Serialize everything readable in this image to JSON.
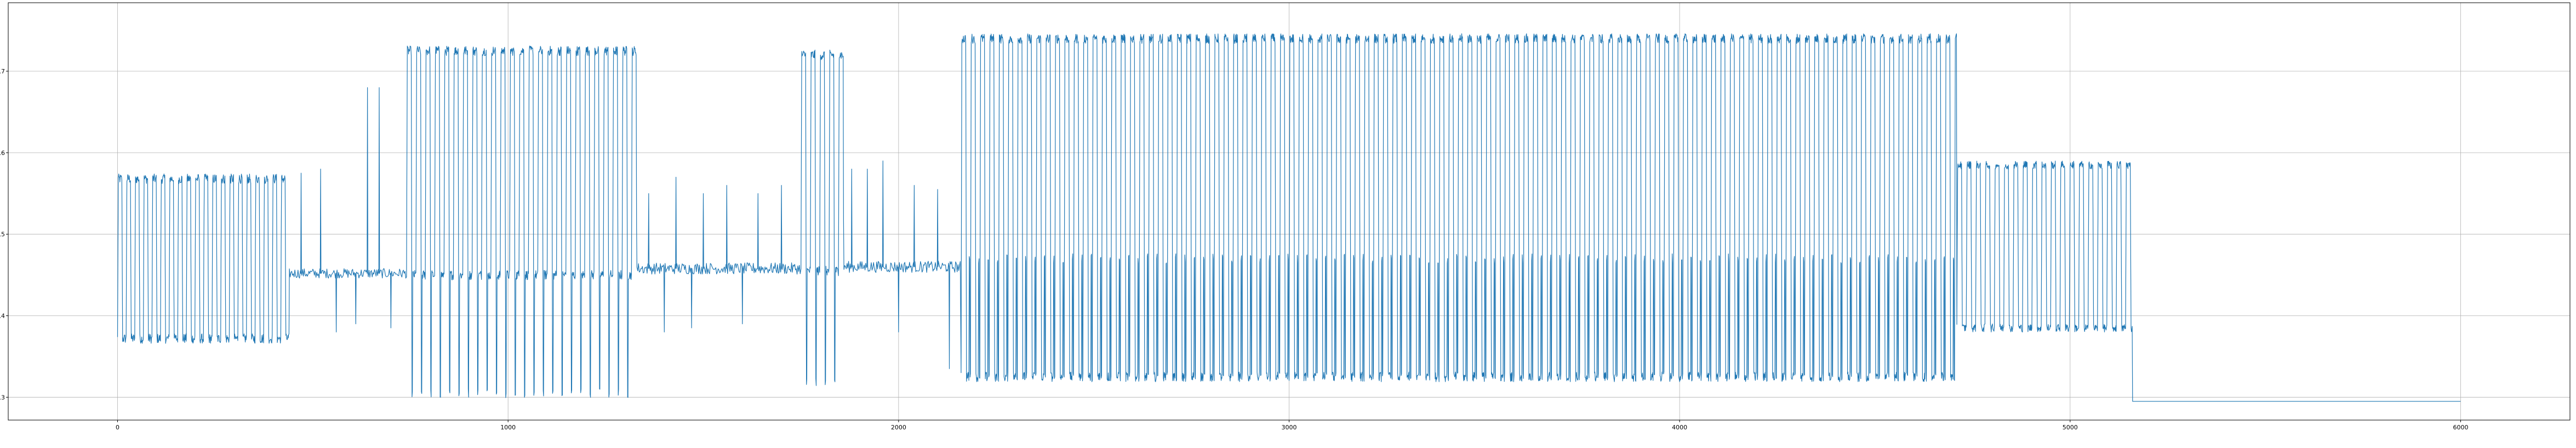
{
  "chart_data": {
    "type": "line",
    "title": "",
    "xlabel": "",
    "ylabel": "",
    "grid": true,
    "xlim": [
      -280,
      6280
    ],
    "ylim": [
      0.272,
      0.784
    ],
    "x_ticks": [
      0,
      1000,
      2000,
      3000,
      4000,
      5000,
      6000
    ],
    "x_tick_labels": [
      "0",
      "1000",
      "2000",
      "3000",
      "4000",
      "5000",
      "6000"
    ],
    "y_ticks": [
      0.3,
      0.4,
      0.5,
      0.6,
      0.7
    ],
    "y_tick_labels": [
      "0.3",
      "0.4",
      "0.5",
      "0.6",
      "0.7"
    ],
    "colors": {
      "line": "#1f77b4",
      "grid": "#b0b0b0",
      "axes": "#000000"
    },
    "series": [
      {
        "segments": [
          {
            "x_start": 0,
            "x_end": 440,
            "period": 22,
            "low": 0.372,
            "high": 0.568,
            "noise": 0.006
          },
          {
            "x_start": 440,
            "x_end": 740,
            "baseline": 0.452,
            "noise": 0.006,
            "spikes": [
              {
                "x": 470,
                "y": 0.575
              },
              {
                "x": 520,
                "y": 0.58
              },
              {
                "x": 560,
                "y": 0.38
              },
              {
                "x": 610,
                "y": 0.39
              },
              {
                "x": 640,
                "y": 0.68
              },
              {
                "x": 655,
                "y": 0.32
              },
              {
                "x": 670,
                "y": 0.68
              },
              {
                "x": 700,
                "y": 0.385
              }
            ]
          },
          {
            "x_start": 740,
            "x_end": 1330,
            "period": 24,
            "low": 0.45,
            "high": 0.725,
            "dip_low": 0.305,
            "noise": 0.006
          },
          {
            "x_start": 1330,
            "x_end": 1750,
            "baseline": 0.458,
            "noise": 0.007,
            "spikes": [
              {
                "x": 1360,
                "y": 0.55
              },
              {
                "x": 1400,
                "y": 0.38
              },
              {
                "x": 1430,
                "y": 0.57
              },
              {
                "x": 1470,
                "y": 0.385
              },
              {
                "x": 1500,
                "y": 0.55
              },
              {
                "x": 1560,
                "y": 0.56
              },
              {
                "x": 1600,
                "y": 0.39
              },
              {
                "x": 1640,
                "y": 0.55
              },
              {
                "x": 1700,
                "y": 0.56
              }
            ]
          },
          {
            "x_start": 1750,
            "x_end": 1860,
            "period": 24,
            "low": 0.455,
            "high": 0.72,
            "dip_low": 0.32,
            "noise": 0.006
          },
          {
            "x_start": 1860,
            "x_end": 2160,
            "baseline": 0.46,
            "noise": 0.007,
            "spikes": [
              {
                "x": 1880,
                "y": 0.58
              },
              {
                "x": 1920,
                "y": 0.58
              },
              {
                "x": 1960,
                "y": 0.59
              },
              {
                "x": 2000,
                "y": 0.38
              },
              {
                "x": 2040,
                "y": 0.56
              },
              {
                "x": 2100,
                "y": 0.555
              },
              {
                "x": 2130,
                "y": 0.335
              }
            ]
          },
          {
            "x_start": 2160,
            "x_end": 4710,
            "period": 24,
            "low": 0.325,
            "high": 0.74,
            "mid": 0.47,
            "noise": 0.006
          },
          {
            "x_start": 4710,
            "x_end": 5160,
            "period": 24,
            "low": 0.385,
            "high": 0.585,
            "noise": 0.005
          },
          {
            "x_start": 5160,
            "x_end": 6000,
            "constant": 0.295
          }
        ]
      }
    ]
  }
}
